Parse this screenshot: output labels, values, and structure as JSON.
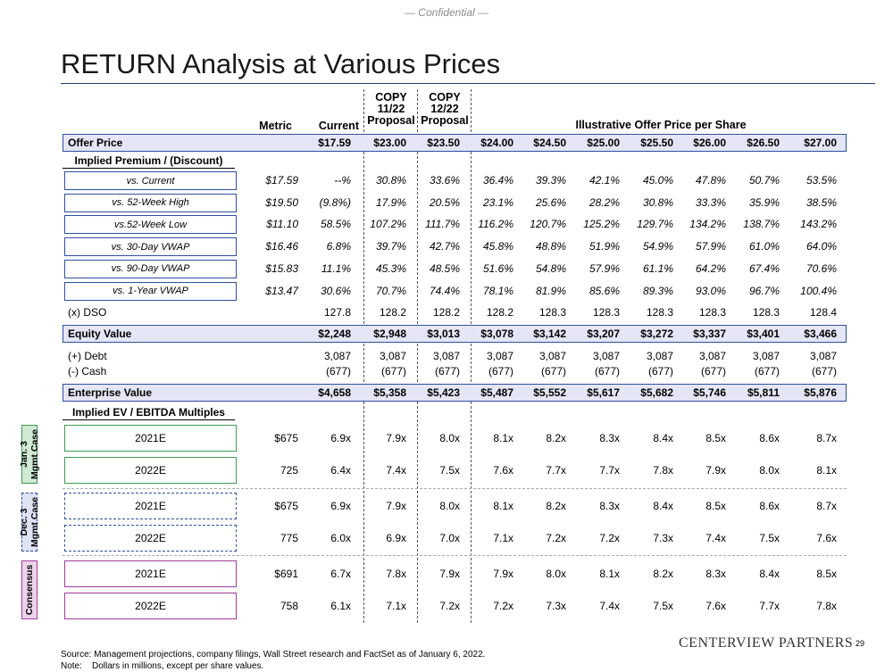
{
  "confidential": "— Confidential —",
  "title": "RETURN Analysis at Various Prices",
  "headers": {
    "metric": "Metric",
    "current": "Current",
    "p1": [
      "COPY",
      "11/22",
      "Proposal"
    ],
    "p2": [
      "COPY",
      "12/22",
      "Proposal"
    ],
    "illustrative": "Illustrative Offer Price per Share"
  },
  "offer_price": {
    "label": "Offer Price",
    "current": "$17.59",
    "values": [
      "$23.00",
      "$23.50",
      "$24.00",
      "$24.50",
      "$25.00",
      "$25.50",
      "$26.00",
      "$26.50",
      "$27.00"
    ]
  },
  "premium_header": "Implied Premium / (Discount)",
  "premium_rows": [
    {
      "label": "vs. Current",
      "metric": "$17.59",
      "current": "--%",
      "values": [
        "30.8%",
        "33.6%",
        "36.4%",
        "39.3%",
        "42.1%",
        "45.0%",
        "47.8%",
        "50.7%",
        "53.5%"
      ]
    },
    {
      "label": "vs. 52-Week High",
      "metric": "$19.50",
      "current": "(9.8%)",
      "values": [
        "17.9%",
        "20.5%",
        "23.1%",
        "25.6%",
        "28.2%",
        "30.8%",
        "33.3%",
        "35.9%",
        "38.5%"
      ]
    },
    {
      "label": "vs.52-Week Low",
      "metric": "$11.10",
      "current": "58.5%",
      "values": [
        "107.2%",
        "111.7%",
        "116.2%",
        "120.7%",
        "125.2%",
        "129.7%",
        "134.2%",
        "138.7%",
        "143.2%"
      ]
    },
    {
      "label": "vs. 30-Day VWAP",
      "metric": "$16.46",
      "current": "6.8%",
      "values": [
        "39.7%",
        "42.7%",
        "45.8%",
        "48.8%",
        "51.9%",
        "54.9%",
        "57.9%",
        "61.0%",
        "64.0%"
      ]
    },
    {
      "label": "vs. 90-Day VWAP",
      "metric": "$15.83",
      "current": "11.1%",
      "values": [
        "45.3%",
        "48.5%",
        "51.6%",
        "54.8%",
        "57.9%",
        "61.1%",
        "64.2%",
        "67.4%",
        "70.6%"
      ]
    },
    {
      "label": "vs. 1-Year VWAP",
      "metric": "$13.47",
      "current": "30.6%",
      "values": [
        "70.7%",
        "74.4%",
        "78.1%",
        "81.9%",
        "85.6%",
        "89.3%",
        "93.0%",
        "96.7%",
        "100.4%"
      ]
    }
  ],
  "dso": {
    "label": "(x) DSO",
    "current": "127.8",
    "values": [
      "128.2",
      "128.2",
      "128.2",
      "128.3",
      "128.3",
      "128.3",
      "128.3",
      "128.3",
      "128.4"
    ]
  },
  "equity_value": {
    "label": "Equity Value",
    "current": "$2,248",
    "values": [
      "$2,948",
      "$3,013",
      "$3,078",
      "$3,142",
      "$3,207",
      "$3,272",
      "$3,337",
      "$3,401",
      "$3,466"
    ]
  },
  "debt": {
    "label": "(+) Debt",
    "current": "3,087",
    "values": [
      "3,087",
      "3,087",
      "3,087",
      "3,087",
      "3,087",
      "3,087",
      "3,087",
      "3,087",
      "3,087"
    ]
  },
  "cash": {
    "label": "(-) Cash",
    "current": "(677)",
    "values": [
      "(677)",
      "(677)",
      "(677)",
      "(677)",
      "(677)",
      "(677)",
      "(677)",
      "(677)",
      "(677)"
    ]
  },
  "enterprise_value": {
    "label": "Enterprise Value",
    "current": "$4,658",
    "values": [
      "$5,358",
      "$5,423",
      "$5,487",
      "$5,552",
      "$5,617",
      "$5,682",
      "$5,746",
      "$5,811",
      "$5,876"
    ]
  },
  "ev_header": "Implied EV / EBITDA Multiples",
  "ev_groups": [
    {
      "group": "Jan. 3 Mgmt Case",
      "group_lines": [
        "Jan. 3",
        "Mgmt Case"
      ],
      "style": "green",
      "rows": [
        {
          "label": "2021E",
          "metric": "$675",
          "current": "6.9x",
          "values": [
            "7.9x",
            "8.0x",
            "8.1x",
            "8.2x",
            "8.3x",
            "8.4x",
            "8.5x",
            "8.6x",
            "8.7x"
          ]
        },
        {
          "label": "2022E",
          "metric": "725",
          "current": "6.4x",
          "values": [
            "7.4x",
            "7.5x",
            "7.6x",
            "7.7x",
            "7.7x",
            "7.8x",
            "7.9x",
            "8.0x",
            "8.1x"
          ]
        }
      ]
    },
    {
      "group": "Dec. 3 Mgmt Case",
      "group_lines": [
        "Dec. 3",
        "Mgmt Case"
      ],
      "style": "blue",
      "rows": [
        {
          "label": "2021E",
          "metric": "$675",
          "current": "6.9x",
          "values": [
            "7.9x",
            "8.0x",
            "8.1x",
            "8.2x",
            "8.3x",
            "8.4x",
            "8.5x",
            "8.6x",
            "8.7x"
          ]
        },
        {
          "label": "2022E",
          "metric": "775",
          "current": "6.0x",
          "values": [
            "6.9x",
            "7.0x",
            "7.1x",
            "7.2x",
            "7.2x",
            "7.3x",
            "7.4x",
            "7.5x",
            "7.6x"
          ]
        }
      ]
    },
    {
      "group": "Consensus",
      "group_lines": [
        "Consensus"
      ],
      "style": "purple",
      "rows": [
        {
          "label": "2021E",
          "metric": "$691",
          "current": "6.7x",
          "values": [
            "7.8x",
            "7.9x",
            "7.9x",
            "8.0x",
            "8.1x",
            "8.2x",
            "8.3x",
            "8.4x",
            "8.5x"
          ]
        },
        {
          "label": "2022E",
          "metric": "758",
          "current": "6.1x",
          "values": [
            "7.1x",
            "7.2x",
            "7.2x",
            "7.3x",
            "7.4x",
            "7.5x",
            "7.6x",
            "7.7x",
            "7.8x"
          ]
        }
      ]
    }
  ],
  "source_line": "Source: Management projections, company filings, Wall Street research and FactSet as of January 6, 2022.",
  "note_line": "Note:    Dollars in millions, except per share values.",
  "logo_text": "CENTERVIEW PARTNERS",
  "page_number": "29"
}
